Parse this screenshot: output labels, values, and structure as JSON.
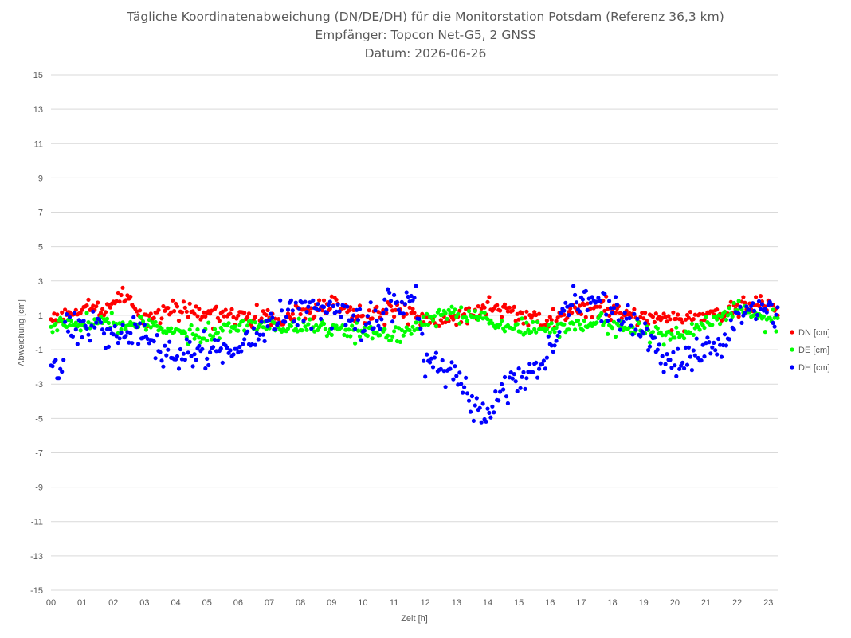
{
  "chart_data": {
    "type": "scatter",
    "title_lines": [
      "Tägliche Koordinatenabweichung (DN/DE/DH) für die Monitorstation Potsdam (Referenz 36,3 km)",
      "Empfänger: Topcon Net-G5, 2 GNSS",
      "Datum: 2026-06-26"
    ],
    "xlabel": "Zeit [h]",
    "ylabel": "Abweichung [cm]",
    "xlim": [
      0,
      23.3
    ],
    "ylim": [
      -15,
      15
    ],
    "x_ticks": [
      "00",
      "01",
      "02",
      "03",
      "04",
      "05",
      "06",
      "07",
      "08",
      "09",
      "10",
      "11",
      "12",
      "13",
      "14",
      "15",
      "16",
      "17",
      "18",
      "19",
      "20",
      "21",
      "22",
      "23"
    ],
    "y_ticks": [
      15,
      13,
      11,
      9,
      7,
      5,
      3,
      1,
      -1,
      -3,
      -5,
      -7,
      -9,
      -11,
      -13,
      -15
    ],
    "grid": "horizontal",
    "legend_position": "right",
    "sample_interval_h": 0.05,
    "series": [
      {
        "name": "DN [cm]",
        "color": "#ff0000",
        "profile": [
          [
            0,
            0.8
          ],
          [
            1,
            1.4
          ],
          [
            2,
            1.5
          ],
          [
            2.3,
            2.5
          ],
          [
            3,
            0.6
          ],
          [
            4,
            1.5
          ],
          [
            5,
            0.9
          ],
          [
            6,
            1.0
          ],
          [
            7,
            0.8
          ],
          [
            8,
            1.1
          ],
          [
            9,
            1.6
          ],
          [
            10,
            1.0
          ],
          [
            11,
            1.2
          ],
          [
            12,
            0.9
          ],
          [
            13,
            0.7
          ],
          [
            14,
            1.6
          ],
          [
            15,
            1.0
          ],
          [
            16,
            0.6
          ],
          [
            17,
            1.5
          ],
          [
            18,
            1.3
          ],
          [
            19,
            0.9
          ],
          [
            20,
            0.8
          ],
          [
            21,
            0.8
          ],
          [
            22,
            1.6
          ],
          [
            23,
            1.6
          ],
          [
            23.3,
            1.3
          ]
        ],
        "noise": 0.7
      },
      {
        "name": "DE [cm]",
        "color": "#00ff00",
        "profile": [
          [
            0,
            0.3
          ],
          [
            1,
            0.6
          ],
          [
            2,
            0.6
          ],
          [
            3,
            0.5
          ],
          [
            4,
            0.0
          ],
          [
            5,
            -0.3
          ],
          [
            6,
            0.4
          ],
          [
            7,
            0.4
          ],
          [
            8,
            0.3
          ],
          [
            9,
            0.1
          ],
          [
            10,
            0.0
          ],
          [
            11,
            -0.2
          ],
          [
            12,
            0.6
          ],
          [
            13,
            1.2
          ],
          [
            14,
            0.7
          ],
          [
            15,
            0.3
          ],
          [
            16,
            0.2
          ],
          [
            17,
            0.5
          ],
          [
            18,
            0.5
          ],
          [
            19,
            0.1
          ],
          [
            20,
            -0.1
          ],
          [
            21,
            0.4
          ],
          [
            22,
            1.4
          ],
          [
            23,
            0.8
          ],
          [
            23.3,
            0.5
          ]
        ],
        "noise": 0.6
      },
      {
        "name": "DH [cm]",
        "color": "#0000ff",
        "profile": [
          [
            0,
            -1.6
          ],
          [
            0.3,
            -2.6
          ],
          [
            0.5,
            0.5
          ],
          [
            1,
            0.6
          ],
          [
            2,
            -0.3
          ],
          [
            3,
            -0.3
          ],
          [
            4,
            -1.5
          ],
          [
            5,
            -1.1
          ],
          [
            6,
            -0.9
          ],
          [
            7,
            0.4
          ],
          [
            8,
            1.5
          ],
          [
            9,
            1.4
          ],
          [
            10,
            0.4
          ],
          [
            10.8,
            1.8
          ],
          [
            11,
            2.0
          ],
          [
            11.7,
            1.5
          ],
          [
            12,
            -1.6
          ],
          [
            13,
            -2.8
          ],
          [
            13.5,
            -4.0
          ],
          [
            14,
            -4.8
          ],
          [
            14.5,
            -3.2
          ],
          [
            15,
            -2.6
          ],
          [
            16,
            -0.8
          ],
          [
            16.5,
            1.5
          ],
          [
            17,
            1.9
          ],
          [
            18,
            1.6
          ],
          [
            18.5,
            0.4
          ],
          [
            19,
            -0.2
          ],
          [
            19.5,
            -1.5
          ],
          [
            20,
            -1.8
          ],
          [
            21,
            -1.2
          ],
          [
            21.6,
            -0.5
          ],
          [
            22,
            1.2
          ],
          [
            23,
            1.4
          ],
          [
            23.3,
            1.0
          ]
        ],
        "noise": 1.3
      }
    ]
  }
}
